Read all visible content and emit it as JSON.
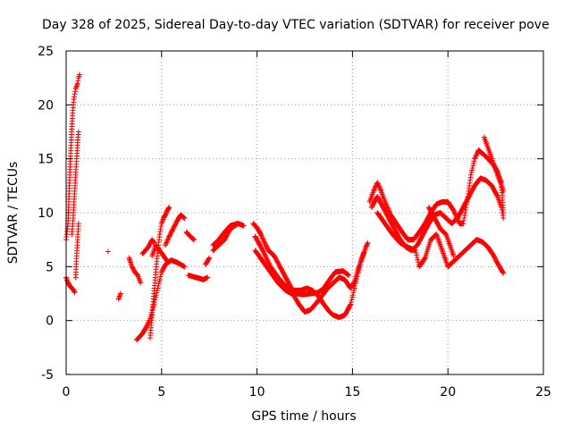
{
  "chart_data": {
    "type": "scatter",
    "title": "Day 328 of 2025, Sidereal Day-to-day VTEC variation (SDTVAR) for receiver pove",
    "xlabel": "GPS time / hours",
    "ylabel": "SDTVAR / TECUs",
    "xlim": [
      0,
      25
    ],
    "ylim": [
      -5,
      25
    ],
    "xticks": [
      0,
      5,
      10,
      15,
      20,
      25
    ],
    "yticks": [
      -5,
      0,
      5,
      10,
      15,
      20,
      25
    ],
    "grid": true,
    "marker": "+",
    "series": [
      {
        "name": "SDTVAR",
        "color": "#ff0000",
        "tracks": [
          [
            [
              0.0,
              7.5
            ],
            [
              0.1,
              9.0
            ],
            [
              0.15,
              11.5
            ],
            [
              0.2,
              14.0
            ],
            [
              0.25,
              16.0
            ],
            [
              0.3,
              18.0
            ],
            [
              0.35,
              19.5
            ],
            [
              0.4,
              20.5
            ],
            [
              0.5,
              21.5
            ],
            [
              0.6,
              22.0
            ],
            [
              0.65,
              22.5
            ],
            [
              0.7,
              22.8
            ]
          ],
          [
            [
              0.0,
              4.0
            ],
            [
              0.1,
              3.5
            ],
            [
              0.2,
              3.2
            ],
            [
              0.3,
              3.0
            ],
            [
              0.4,
              2.8
            ],
            [
              0.45,
              2.6
            ]
          ],
          [
            [
              0.3,
              8.0
            ],
            [
              0.35,
              9.0
            ],
            [
              0.4,
              10.5
            ],
            [
              0.45,
              12.0
            ],
            [
              0.5,
              13.5
            ],
            [
              0.55,
              15.0
            ],
            [
              0.6,
              16.5
            ],
            [
              0.65,
              17.5
            ]
          ],
          [
            [
              0.5,
              4.0
            ],
            [
              0.55,
              6.0
            ],
            [
              0.6,
              7.5
            ],
            [
              0.65,
              9.0
            ]
          ],
          [
            [
              2.2,
              6.4
            ]
          ],
          [
            [
              2.75,
              2.0
            ],
            [
              2.85,
              2.5
            ]
          ],
          [
            [
              3.3,
              5.8
            ],
            [
              3.45,
              5.0
            ],
            [
              3.6,
              4.5
            ],
            [
              3.75,
              4.2
            ],
            [
              3.9,
              3.5
            ]
          ],
          [
            [
              3.7,
              -1.8
            ],
            [
              4.0,
              -1.2
            ],
            [
              4.2,
              -0.6
            ],
            [
              4.35,
              0.0
            ]
          ],
          [
            [
              4.0,
              6.2
            ],
            [
              4.3,
              6.8
            ],
            [
              4.5,
              7.5
            ],
            [
              4.6,
              7.2
            ]
          ],
          [
            [
              4.4,
              -1.6
            ],
            [
              4.5,
              0.5
            ],
            [
              4.6,
              2.5
            ],
            [
              4.7,
              4.5
            ],
            [
              4.8,
              6.5
            ],
            [
              4.9,
              8.0
            ],
            [
              5.0,
              9.0
            ],
            [
              5.1,
              9.5
            ],
            [
              5.2,
              9.8
            ],
            [
              5.3,
              10.2
            ],
            [
              5.4,
              10.5
            ]
          ],
          [
            [
              4.4,
              0.2
            ],
            [
              4.6,
              1.5
            ],
            [
              4.8,
              3.0
            ],
            [
              5.0,
              4.5
            ],
            [
              5.2,
              5.2
            ],
            [
              5.5,
              5.6
            ],
            [
              5.8,
              5.4
            ],
            [
              6.0,
              5.2
            ],
            [
              6.2,
              5.0
            ]
          ],
          [
            [
              4.5,
              6.0
            ],
            [
              4.7,
              7.0
            ],
            [
              4.9,
              6.5
            ],
            [
              5.1,
              6.0
            ],
            [
              5.3,
              5.5
            ]
          ],
          [
            [
              5.2,
              7.0
            ],
            [
              5.4,
              7.8
            ],
            [
              5.6,
              8.5
            ],
            [
              5.8,
              9.2
            ],
            [
              6.0,
              9.8
            ],
            [
              6.2,
              9.5
            ]
          ],
          [
            [
              6.4,
              4.2
            ],
            [
              6.8,
              4.0
            ],
            [
              7.2,
              3.8
            ],
            [
              7.4,
              4.0
            ]
          ],
          [
            [
              6.3,
              8.2
            ],
            [
              6.5,
              7.8
            ],
            [
              6.7,
              7.5
            ]
          ],
          [
            [
              7.3,
              5.2
            ],
            [
              7.5,
              5.8
            ]
          ],
          [
            [
              7.7,
              6.5
            ],
            [
              8.0,
              7.0
            ],
            [
              8.3,
              7.5
            ],
            [
              8.6,
              8.5
            ],
            [
              9.0,
              9.0
            ],
            [
              9.3,
              8.8
            ]
          ],
          [
            [
              7.7,
              7.0
            ],
            [
              8.0,
              7.5
            ],
            [
              8.3,
              8.2
            ],
            [
              8.6,
              8.8
            ],
            [
              9.0,
              9.0
            ]
          ],
          [
            [
              9.8,
              9.0
            ],
            [
              10.0,
              8.6
            ],
            [
              10.2,
              8.0
            ],
            [
              10.4,
              7.2
            ],
            [
              10.6,
              6.5
            ],
            [
              10.9,
              6.0
            ],
            [
              11.2,
              5.0
            ],
            [
              11.5,
              4.0
            ],
            [
              11.8,
              3.0
            ],
            [
              12.1,
              2.5
            ],
            [
              12.4,
              2.4
            ],
            [
              12.8,
              2.5
            ],
            [
              13.2,
              2.6
            ],
            [
              13.5,
              3.0
            ],
            [
              13.8,
              3.8
            ],
            [
              14.1,
              4.5
            ],
            [
              14.5,
              4.6
            ],
            [
              14.8,
              4.2
            ]
          ],
          [
            [
              9.9,
              7.8
            ],
            [
              10.3,
              6.5
            ],
            [
              10.7,
              5.0
            ],
            [
              11.1,
              4.0
            ],
            [
              11.5,
              3.2
            ],
            [
              11.9,
              2.8
            ],
            [
              12.3,
              2.8
            ],
            [
              12.6,
              3.0
            ],
            [
              12.9,
              2.8
            ],
            [
              13.2,
              2.3
            ],
            [
              13.5,
              1.5
            ],
            [
              13.8,
              0.8
            ],
            [
              14.0,
              0.5
            ],
            [
              14.3,
              0.3
            ],
            [
              14.6,
              0.5
            ],
            [
              14.9,
              1.5
            ],
            [
              15.1,
              3.0
            ],
            [
              15.3,
              4.5
            ],
            [
              15.5,
              5.8
            ],
            [
              15.7,
              6.8
            ],
            [
              15.8,
              7.2
            ]
          ],
          [
            [
              9.9,
              6.5
            ],
            [
              10.3,
              5.5
            ],
            [
              10.7,
              4.5
            ],
            [
              11.1,
              3.5
            ],
            [
              11.5,
              2.8
            ],
            [
              11.9,
              2.4
            ],
            [
              12.2,
              1.5
            ],
            [
              12.5,
              0.8
            ],
            [
              12.8,
              1.0
            ],
            [
              13.1,
              1.6
            ],
            [
              13.4,
              2.3
            ],
            [
              13.7,
              3.0
            ],
            [
              14.0,
              3.5
            ],
            [
              14.3,
              4.0
            ],
            [
              14.6,
              3.8
            ],
            [
              14.9,
              3.0
            ],
            [
              15.1,
              3.6
            ],
            [
              15.3,
              4.8
            ],
            [
              15.6,
              6.3
            ]
          ],
          [
            [
              15.9,
              11.0
            ],
            [
              16.1,
              12.0
            ],
            [
              16.3,
              12.8
            ],
            [
              16.5,
              12.0
            ],
            [
              16.7,
              11.0
            ],
            [
              17.0,
              9.8
            ],
            [
              17.3,
              9.0
            ],
            [
              17.6,
              8.2
            ],
            [
              17.9,
              7.5
            ],
            [
              18.2,
              7.5
            ],
            [
              18.5,
              8.2
            ],
            [
              18.8,
              9.0
            ],
            [
              19.1,
              10.0
            ],
            [
              19.4,
              10.8
            ],
            [
              19.7,
              11.0
            ],
            [
              20.0,
              11.0
            ],
            [
              20.3,
              10.2
            ],
            [
              20.6,
              9.0
            ],
            [
              20.8,
              9.0
            ],
            [
              21.0,
              11.0
            ],
            [
              21.2,
              13.5
            ],
            [
              21.4,
              15.0
            ],
            [
              21.6,
              15.8
            ],
            [
              21.8,
              15.5
            ],
            [
              22.0,
              15.2
            ],
            [
              22.2,
              14.8
            ],
            [
              22.4,
              14.4
            ],
            [
              22.6,
              13.8
            ],
            [
              22.8,
              12.8
            ],
            [
              22.9,
              10.0
            ]
          ],
          [
            [
              16.0,
              10.5
            ],
            [
              16.3,
              11.5
            ],
            [
              16.6,
              10.5
            ],
            [
              16.9,
              9.5
            ],
            [
              17.2,
              8.5
            ],
            [
              17.5,
              7.5
            ],
            [
              17.8,
              6.8
            ],
            [
              18.1,
              6.5
            ],
            [
              18.4,
              7.0
            ],
            [
              18.7,
              8.0
            ],
            [
              19.0,
              9.0
            ],
            [
              19.3,
              9.8
            ],
            [
              19.6,
              10.0
            ],
            [
              19.9,
              9.5
            ],
            [
              20.2,
              9.0
            ],
            [
              20.5,
              9.5
            ],
            [
              20.8,
              10.5
            ],
            [
              21.1,
              11.5
            ],
            [
              21.4,
              12.5
            ],
            [
              21.7,
              13.2
            ],
            [
              22.0,
              13.0
            ],
            [
              22.3,
              12.5
            ],
            [
              22.6,
              11.5
            ],
            [
              22.8,
              10.5
            ],
            [
              22.9,
              9.5
            ]
          ],
          [
            [
              16.3,
              10.0
            ],
            [
              16.7,
              9.0
            ],
            [
              17.1,
              8.0
            ],
            [
              17.5,
              7.2
            ],
            [
              17.9,
              6.8
            ],
            [
              18.3,
              6.5
            ],
            [
              18.5,
              5.0
            ],
            [
              18.8,
              5.8
            ],
            [
              19.1,
              7.5
            ],
            [
              19.4,
              8.0
            ],
            [
              19.7,
              6.5
            ],
            [
              20.0,
              5.0
            ],
            [
              20.3,
              5.5
            ],
            [
              20.6,
              6.0
            ],
            [
              20.9,
              6.5
            ],
            [
              21.2,
              7.0
            ],
            [
              21.5,
              7.5
            ],
            [
              21.8,
              7.3
            ],
            [
              22.1,
              6.8
            ],
            [
              22.4,
              6.0
            ],
            [
              22.6,
              5.3
            ],
            [
              22.8,
              4.7
            ],
            [
              22.9,
              4.4
            ]
          ],
          [
            [
              21.9,
              17.0
            ],
            [
              22.1,
              16.0
            ],
            [
              22.3,
              15.0
            ],
            [
              22.5,
              14.0
            ],
            [
              22.7,
              13.0
            ],
            [
              22.9,
              12.0
            ]
          ],
          [
            [
              19.0,
              10.5
            ],
            [
              19.3,
              9.5
            ],
            [
              19.6,
              8.5
            ],
            [
              19.9,
              8.0
            ],
            [
              20.1,
              7.0
            ],
            [
              20.3,
              6.0
            ]
          ]
        ]
      }
    ]
  }
}
